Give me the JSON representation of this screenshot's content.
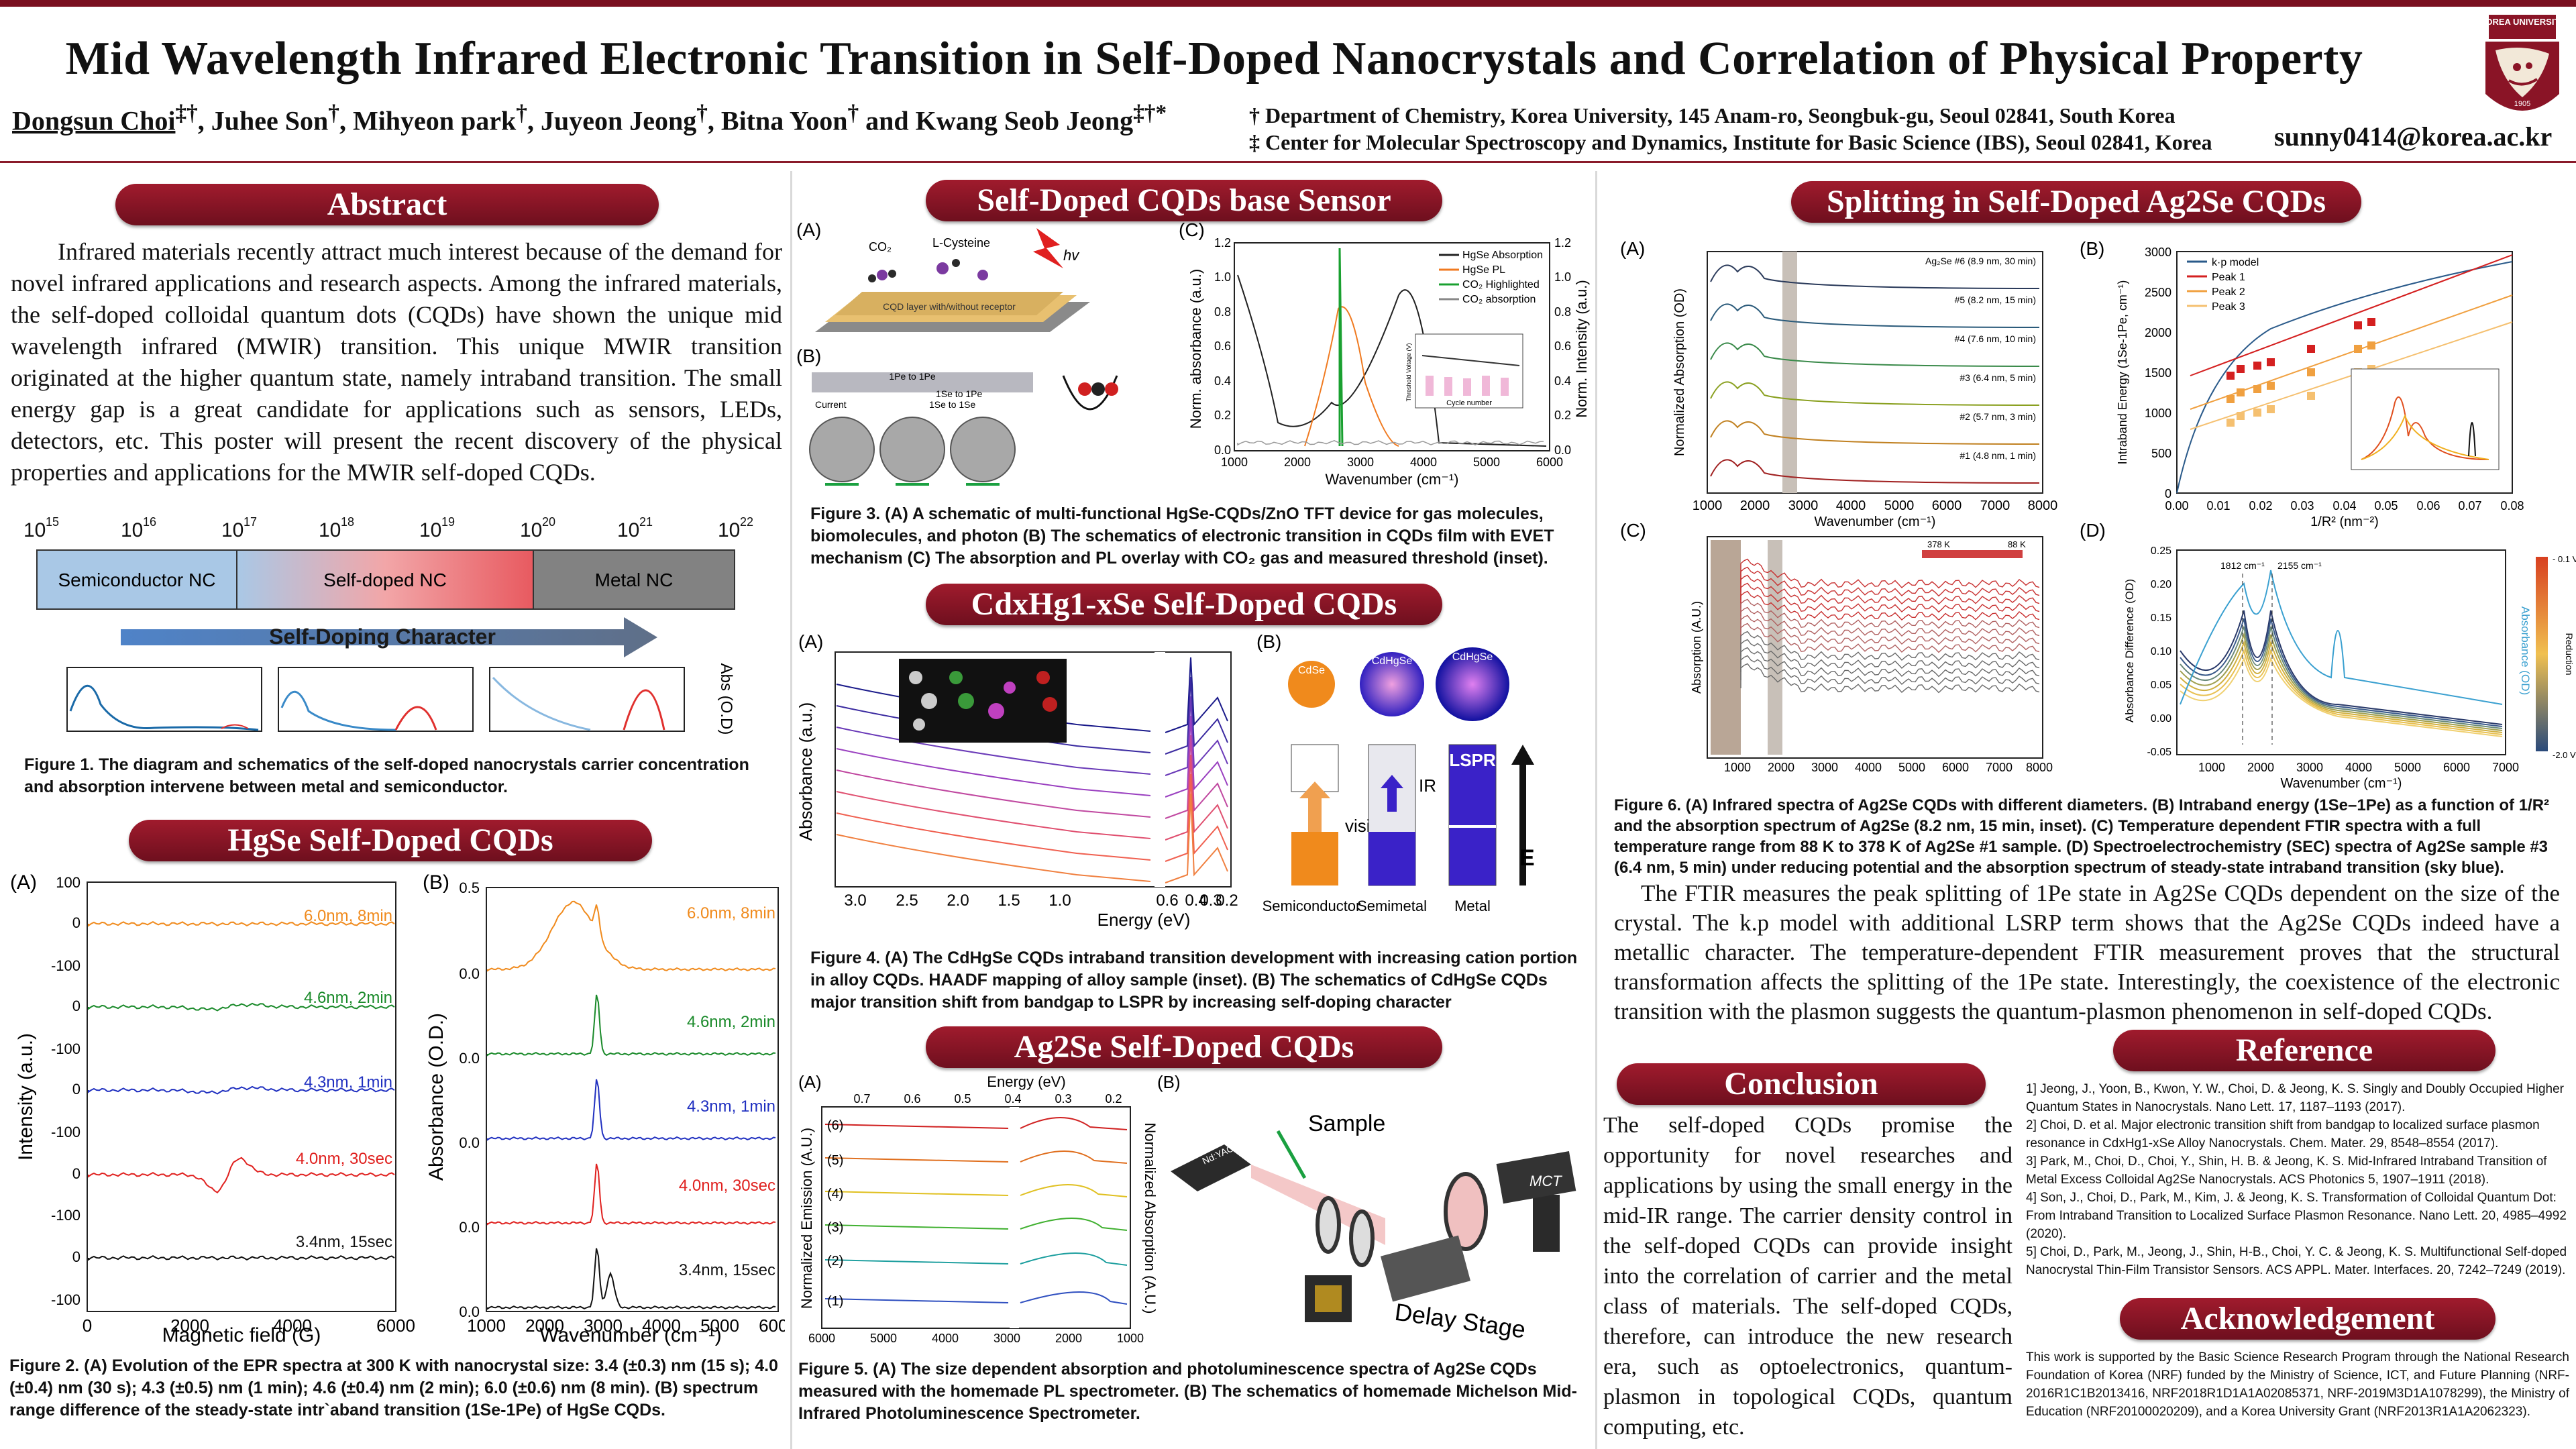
{
  "header": {
    "title": "Mid Wavelength Infrared Electronic Transition in Self-Doped Nanocrystals and Correlation of Physical Property",
    "authors": {
      "presenter": "Dongsun Choi",
      "presenter_sup": "‡†",
      "others": [
        {
          "name": "Juhee Son",
          "sup": "†"
        },
        {
          "name": "Mihyeon park",
          "sup": "†"
        },
        {
          "name": "Juyeon Jeong",
          "sup": "†"
        },
        {
          "name": "Bitna Yoon",
          "sup": "†"
        }
      ],
      "and": "and",
      "last": {
        "name": "Kwang Seob Jeong",
        "sup": "‡†*"
      }
    },
    "affiliations": [
      "† Department of Chemistry, Korea University, 145 Anam-ro, Seongbuk-gu, Seoul 02841, South Korea",
      "‡ Center for Molecular Spectroscopy and Dynamics, Institute for Basic Science (IBS), Seoul 02841, Korea"
    ],
    "email": "sunny0414@korea.ac.kr",
    "logo_text": "KOREA UNIVERSITY",
    "logo_year": "1905"
  },
  "abstract": {
    "title": "Abstract",
    "text": "Infrared materials recently attract much interest because of the demand for novel infrared applications and research aspects. Among the infrared materials, the self-doped colloidal quantum dots (CQDs) have shown the unique mid wavelength infrared (MWIR) transition. This unique MWIR transition originated at the higher quantum state, namely intraband transition. The small energy gap is a great candidate for applications such as sensors, LEDs, detectors, etc. This poster will present the recent discovery of the physical properties and applications for the MWIR self-doped CQDs.",
    "scale_labels": [
      "10",
      "10",
      "10",
      "10",
      "10",
      "10",
      "10",
      "10"
    ],
    "scale_exps": [
      "15",
      "16",
      "17",
      "18",
      "19",
      "20",
      "21",
      "22"
    ],
    "bar_labels": [
      "Semiconductor NC",
      "Self-doped NC",
      "Metal NC"
    ],
    "arrow_label": "Self-Doping Character",
    "abs_axis": "Abs (O.D)",
    "fig1_caption": "Figure 1. The diagram and schematics of the self-doped nanocrystals carrier concentration and absorption intervene between metal and semiconductor."
  },
  "hgse": {
    "title": "HgSe Self-Doped CQDs",
    "panel_a": "(A)",
    "panel_b": "(B)",
    "a_xlabel": "Magnetic field  (G)",
    "a_ylabel": "Intensity (a.u.)",
    "b_xlabel": "Wavenumber (cm⁻¹)",
    "b_ylabel": "Absorbance (O.D.)",
    "a_xticks": [
      "0",
      "2000",
      "4000",
      "6000"
    ],
    "a_yticks": [
      "100",
      "0",
      "-100",
      "0",
      "-100",
      "0",
      "-100",
      "0",
      "-100",
      "0",
      "-100"
    ],
    "b_xticks": [
      "1000",
      "2000",
      "3000",
      "4000",
      "5000",
      "6000"
    ],
    "b_yticks": [
      "0.5",
      "0.0",
      "0.0",
      "0.0",
      "0.0",
      "0.0"
    ],
    "series": [
      {
        "label": "6.0nm, 8min",
        "color": "#f08a1c"
      },
      {
        "label": "4.6nm, 2min",
        "color": "#1a8a2a"
      },
      {
        "label": "4.3nm, 1min",
        "color": "#2030c0"
      },
      {
        "label": "4.0nm, 30sec",
        "color": "#e0201e"
      },
      {
        "label": "3.4nm, 15sec",
        "color": "#111111"
      }
    ],
    "fig2_caption": "Figure 2. (A) Evolution of the EPR spectra at 300 K with nanocrystal size: 3.4 (±0.3) nm (15 s); 4.0 (±0.4) nm (30 s); 4.3 (±0.5) nm (1 min); 4.6 (±0.4) nm (2 min); 6.0 (±0.6) nm (8 min). (B) spectrum range difference of the steady-state intr`aband transition (1Se-1Pe) of HgSe CQDs."
  },
  "sensor": {
    "title": "Self-Doped CQDs base Sensor",
    "panel_a": "(A)",
    "panel_b": "(B)",
    "panel_c": "(C)",
    "labels": [
      "CO₂",
      "L-Cysteine",
      "hv",
      "CQD layer with/without receptor",
      "1Pe to 1Pe",
      "1Se to 1Pe",
      "1Se to 1Se",
      "Current"
    ],
    "c_xlabel": "Wavenumber (cm⁻¹)",
    "c_ylabel": "Norm. absorbance (a.u.)",
    "c_ylabel2": "Norm. Intensity (a.u.)",
    "c_xticks": [
      "1000",
      "2000",
      "3000",
      "4000",
      "5000",
      "6000"
    ],
    "c_yticks": [
      "0.0",
      "0.2",
      "0.4",
      "0.6",
      "0.8",
      "1.0",
      "1.2"
    ],
    "legend": [
      {
        "label": "HgSe Absorption",
        "color": "#222222"
      },
      {
        "label": "HgSe PL",
        "color": "#f07a20"
      },
      {
        "label": "CO₂ Highlighted",
        "color": "#1aa030"
      },
      {
        "label": "CO₂ absorption",
        "color": "#888888"
      }
    ],
    "inset_xlabel": "Cycle number",
    "inset_ylabel": "Threshold Voltage (V)",
    "fig3_caption": "Figure 3. (A) A schematic of multi-functional HgSe-CQDs/ZnO TFT device for gas molecules, biomolecules, and photon (B) The schematics of electronic transition in CQDs film with EVET mechanism (C) The absorption and PL overlay with CO₂ gas and measured threshold (inset)."
  },
  "cdhgse": {
    "title": "CdxHg1-xSe Self-Doped CQDs",
    "panel_a": "(A)",
    "panel_b": "(B)",
    "a_xlabel": "Energy (eV)",
    "a_ylabel": "Absorbance (a.u.)",
    "a_xticks": [
      "3.0",
      "2.5",
      "2.0",
      "1.5",
      "1.0",
      "0.6",
      "0.4",
      "0.3",
      "0.2"
    ],
    "b_labels": [
      "CdSe",
      "CdHgSe",
      "CdHgSe",
      "visible",
      "IR",
      "LSPR",
      "E"
    ],
    "b_bottom": [
      "Semiconductor",
      "Semimetal",
      "Metal"
    ],
    "fig4_caption": "Figure 4. (A) The CdHgSe CQDs intraband transition development with increasing cation portion in alloy CQDs. HAADF mapping of alloy sample (inset). (B) The schematics of CdHgSe CQDs major transition shift from bandgap to LSPR by increasing self-doping character"
  },
  "ag2se_pl": {
    "title": "Ag2Se Self-Doped CQDs",
    "panel_a": "(A)",
    "panel_b": "(B)",
    "a_top_label": "Energy (eV)",
    "a_top_ticks": [
      "0.7",
      "0.6",
      "0.5",
      "0.4",
      "0.3",
      "0.2"
    ],
    "a_xticks": [
      "6000",
      "5000",
      "4000",
      "3000",
      "2000",
      "1000"
    ],
    "a_ylabel": "Normalized Emission (A.U.)",
    "a_ylabel2": "Normalized Absorption (A.U.)",
    "a_rows": [
      "(6)",
      "(5)",
      "(4)",
      "(3)",
      "(2)",
      "(1)"
    ],
    "b_labels": [
      "Sample",
      "Delay Stage",
      "MCT",
      "Nd:YAG 1064 nm"
    ],
    "fig5_caption": "Figure 5. (A) The size dependent absorption and photoluminescence spectra of Ag2Se CQDs measured with the homemade PL spectrometer. (B) The schematics of homemade Michelson Mid-Infrared Photoluminescence Spectrometer."
  },
  "splitting": {
    "title": "Splitting in Self-Doped Ag2Se CQDs",
    "panel_a": "(A)",
    "panel_b": "(B)",
    "panel_c": "(C)",
    "panel_d": "(D)",
    "a_xlabel": "Wavenumber (cm⁻¹)",
    "a_ylabel": "Normalized Absorption (OD)",
    "a_xticks": [
      "1000",
      "2000",
      "3000",
      "4000",
      "5000",
      "6000",
      "7000",
      "8000"
    ],
    "a_rows": [
      "Ag₂Se #6 (8.9 nm, 30 min)",
      "#5 (8.2 nm, 15 min)",
      "#4 (7.6 nm, 10 min)",
      "#3 (6.4 nm, 5 min)",
      "#2 (5.7 nm, 3 min)",
      "#1 (4.8 nm, 1 min)"
    ],
    "b_xlabel": "1/R² (nm⁻²)",
    "b_ylabel": "Intraband Energy (1Se-1Pe, cm⁻¹)",
    "b_xticks": [
      "0.00",
      "0.01",
      "0.02",
      "0.03",
      "0.04",
      "0.05",
      "0.06",
      "0.07",
      "0.08"
    ],
    "b_yticks": [
      "3000",
      "2500",
      "2000",
      "1500",
      "1000",
      "500",
      "0"
    ],
    "b_legend": [
      {
        "label": "k·p model",
        "color": "#2a5a8a"
      },
      {
        "label": "Peak 1",
        "color": "#d42020"
      },
      {
        "label": "Peak 2",
        "color": "#f0a040"
      },
      {
        "label": "Peak 3",
        "color": "#f5c070"
      }
    ],
    "c_ylabel": "Absorption (A.U.)",
    "c_xticks": [
      "1000",
      "2000",
      "3000",
      "4000",
      "5000",
      "6000",
      "7000",
      "8000"
    ],
    "c_legend": [
      "378 K",
      "88 K"
    ],
    "d_xlabel": "Wavenumber (cm⁻¹)",
    "d_ylabel": "Absorbance Difference (OD)",
    "d_ylabel2": "Absorbance (OD)",
    "d_xticks": [
      "1000",
      "2000",
      "3000",
      "4000",
      "5000",
      "6000",
      "7000"
    ],
    "d_yticks": [
      "0.25",
      "0.20",
      "0.15",
      "0.10",
      "0.05",
      "0.00",
      "-0.05"
    ],
    "d_annot": [
      "1812 cm⁻¹",
      "2155 cm⁻¹"
    ],
    "d_scale": [
      "- 0.1 V",
      "-2.0 V",
      "Reduction"
    ],
    "fig6_caption": "Figure 6. (A) Infrared spectra of Ag2Se CQDs with different diameters. (B) Intraband energy (1Se–1Pe) as a function of 1/R² and the absorption spectrum of Ag2Se (8.2 nm, 15 min, inset). (C) Temperature dependent FTIR spectra with a full temperature range from 88 K to 378 K of Ag2Se #1 sample. (D) Spectroelectrochemistry (SEC) spectra of Ag2Se sample #3 (6.4 nm, 5 min) under reducing potential and the absorption spectrum of steady-state intraband transition (sky blue).",
    "text": "The FTIR measures the peak splitting of 1Pe state in Ag2Se CQDs dependent on the size of the crystal. The k.p model with additional LSRP term shows that the Ag2Se CQDs indeed have a metallic character. The temperature-dependent FTIR measurement proves that the structural transformation affects the splitting of the 1Pe state. Interestingly, the coexistence of the electronic transition with the plasmon suggests the quantum-plasmon phenomenon in self-doped CQDs."
  },
  "conclusion": {
    "title": "Conclusion",
    "text": "The self-doped CQDs promise the opportunity for novel researches and applications by using the small energy in the mid-IR range. The carrier density control in the self-doped CQDs can provide insight into the correlation of carrier and the metal class of materials. The self-doped CQDs, therefore, can introduce the new research era, such as optoelectronics, quantum-plasmon in topological CQDs, quantum computing, etc."
  },
  "reference": {
    "title": "Reference",
    "items": [
      "1] Jeong, J., Yoon, B., Kwon, Y. W., Choi, D. & Jeong, K. S. Singly and Doubly Occupied Higher Quantum States in Nanocrystals. Nano Lett. 17, 1187–1193 (2017).",
      "2] Choi, D. et al. Major electronic transition shift from bandgap to localized surface plasmon resonance in CdxHg1-xSe Alloy Nanocrystals. Chem. Mater. 29, 8548–8554 (2017).",
      "3] Park, M., Choi, D., Choi, Y., Shin, H. B. & Jeong, K. S. Mid-Infrared Intraband Transition of Metal Excess Colloidal Ag2Se Nanocrystals. ACS Photonics 5, 1907–1911 (2018).",
      "4] Son, J., Choi, D., Park, M., Kim, J. & Jeong, K. S. Transformation of Colloidal Quantum Dot: From Intraband Transition to Localized Surface Plasmon Resonance. Nano Lett. 20, 4985–4992 (2020).",
      "5] Choi, D., Park, M., Jeong, J., Shin, H-B., Choi, Y. C. & Jeong, K. S. Multifunctional Self-doped Nanocrystal Thin-Film Transistor Sensors. ACS APPL. Mater. Interfaces. 20, 7242–7249 (2019)."
    ]
  },
  "acknowledgement": {
    "title": "Acknowledgement",
    "text": "This work is supported by the Basic Science Research Program through the National Research Foundation of Korea (NRF) funded by the Ministry of Science, ICT, and Future Planning (NRF-2016R1C1B2013416, NRF2018R1D1A1A02085371, NRF-2019M3D1A1078299), the Ministry of Education (NRF20100020209), and a Korea University Grant (NRF2013R1A1A2062323)."
  }
}
